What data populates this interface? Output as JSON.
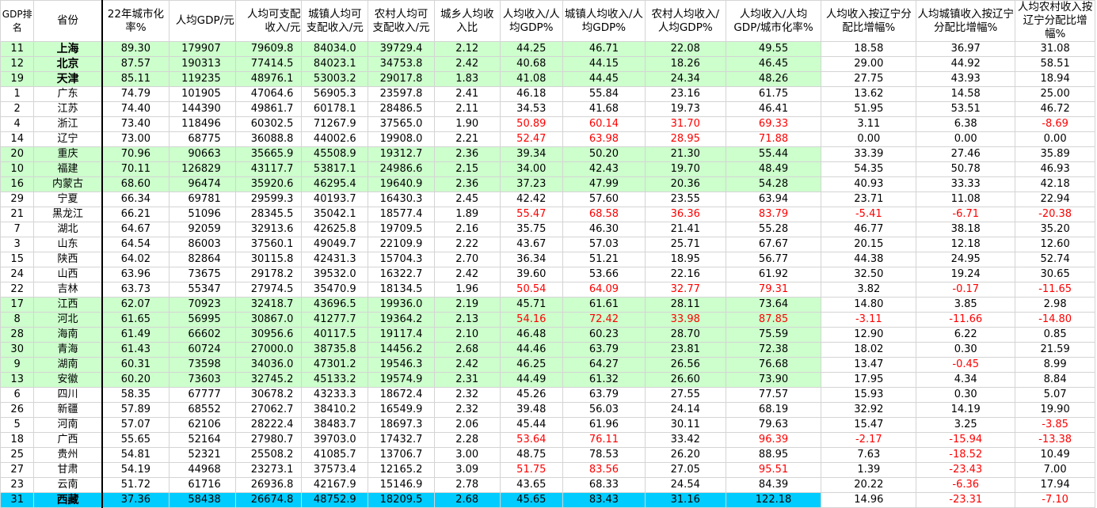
{
  "colors": {
    "highlight_green": "#ccffcc",
    "highlight_blue": "#00ccff",
    "negative_or_high_red": "#ff0000",
    "grid": "#d4d4d4"
  },
  "table": {
    "headers": [
      "GDP排名",
      "省份",
      "22年城市化率%",
      "人均GDP/元",
      "人均可支配收入/元",
      "城镇人均可支配收入/元",
      "农村人均可支配收入/元",
      "城乡人均收入比",
      "人均收入/人均GDP%",
      "城镇人均收入/人均GDP%",
      "农村人均收入/人均GDP%",
      "人均收入/人均GDP/城市化率%",
      "人均收入按辽宁分配比增幅%",
      "人均城镇收入按辽宁分配比增幅%",
      "人均农村收入按辽宁分配比增幅%"
    ],
    "rows": [
      {
        "hl": "green",
        "bold": true,
        "red": [],
        "cells": [
          "11",
          "上海",
          "89.30",
          "179907",
          "79609.8",
          "84034.0",
          "39729.4",
          "2.12",
          "44.25",
          "46.71",
          "22.08",
          "49.55",
          "18.58",
          "36.97",
          "31.08"
        ]
      },
      {
        "hl": "green",
        "bold": true,
        "red": [],
        "cells": [
          "12",
          "北京",
          "87.57",
          "190313",
          "77414.5",
          "84023.1",
          "34753.8",
          "2.42",
          "40.68",
          "44.15",
          "18.26",
          "46.45",
          "29.00",
          "44.92",
          "58.51"
        ]
      },
      {
        "hl": "green",
        "bold": true,
        "red": [],
        "cells": [
          "19",
          "天津",
          "85.11",
          "119235",
          "48976.1",
          "53003.2",
          "29017.8",
          "1.83",
          "41.08",
          "44.45",
          "24.34",
          "48.26",
          "27.75",
          "43.93",
          "18.94"
        ]
      },
      {
        "hl": "",
        "bold": false,
        "red": [],
        "cells": [
          "1",
          "广东",
          "74.79",
          "101905",
          "47064.6",
          "56905.3",
          "23597.8",
          "2.41",
          "46.18",
          "55.84",
          "23.16",
          "61.75",
          "13.62",
          "14.58",
          "25.00"
        ]
      },
      {
        "hl": "",
        "bold": false,
        "red": [],
        "cells": [
          "2",
          "江苏",
          "74.40",
          "144390",
          "49861.7",
          "60178.1",
          "28486.5",
          "2.11",
          "34.53",
          "41.68",
          "19.73",
          "46.41",
          "51.95",
          "53.51",
          "46.72"
        ]
      },
      {
        "hl": "",
        "bold": false,
        "red": [
          8,
          9,
          10,
          11,
          14
        ],
        "cells": [
          "4",
          "浙江",
          "73.40",
          "118496",
          "60302.5",
          "71267.9",
          "37565.0",
          "1.90",
          "50.89",
          "60.14",
          "31.70",
          "69.33",
          "3.11",
          "6.38",
          "-8.69"
        ]
      },
      {
        "hl": "",
        "bold": false,
        "red": [
          8,
          9,
          10,
          11
        ],
        "cells": [
          "14",
          "辽宁",
          "73.00",
          "68775",
          "36088.8",
          "44002.6",
          "19908.0",
          "2.21",
          "52.47",
          "63.98",
          "28.95",
          "71.88",
          "0.00",
          "0.00",
          "0.00"
        ]
      },
      {
        "hl": "green",
        "bold": false,
        "red": [],
        "cells": [
          "20",
          "重庆",
          "70.96",
          "90663",
          "35665.9",
          "45508.9",
          "19312.7",
          "2.36",
          "39.34",
          "50.20",
          "21.30",
          "55.44",
          "33.39",
          "27.46",
          "35.89"
        ]
      },
      {
        "hl": "green",
        "bold": false,
        "red": [],
        "cells": [
          "10",
          "福建",
          "70.11",
          "126829",
          "43117.7",
          "53817.1",
          "24986.6",
          "2.15",
          "34.00",
          "42.43",
          "19.70",
          "48.49",
          "54.35",
          "50.78",
          "46.93"
        ]
      },
      {
        "hl": "green",
        "bold": false,
        "red": [],
        "cells": [
          "16",
          "内蒙古",
          "68.60",
          "96474",
          "35920.6",
          "46295.4",
          "19640.9",
          "2.36",
          "37.23",
          "47.99",
          "20.36",
          "54.28",
          "40.93",
          "33.33",
          "42.18"
        ]
      },
      {
        "hl": "",
        "bold": false,
        "red": [],
        "cells": [
          "29",
          "宁夏",
          "66.34",
          "69781",
          "29599.3",
          "40193.7",
          "16430.3",
          "2.45",
          "42.42",
          "57.60",
          "23.55",
          "63.94",
          "23.71",
          "11.08",
          "22.94"
        ]
      },
      {
        "hl": "",
        "bold": false,
        "red": [
          8,
          9,
          10,
          11,
          12,
          13,
          14
        ],
        "cells": [
          "21",
          "黑龙江",
          "66.21",
          "51096",
          "28345.5",
          "35042.1",
          "18577.4",
          "1.89",
          "55.47",
          "68.58",
          "36.36",
          "83.79",
          "-5.41",
          "-6.71",
          "-20.38"
        ]
      },
      {
        "hl": "",
        "bold": false,
        "red": [],
        "cells": [
          "7",
          "湖北",
          "64.67",
          "92059",
          "32913.6",
          "42625.8",
          "19709.5",
          "2.16",
          "35.75",
          "46.30",
          "21.41",
          "55.28",
          "46.77",
          "38.18",
          "35.20"
        ]
      },
      {
        "hl": "",
        "bold": false,
        "red": [],
        "cells": [
          "3",
          "山东",
          "64.54",
          "86003",
          "37560.1",
          "49049.7",
          "22109.9",
          "2.22",
          "43.67",
          "57.03",
          "25.71",
          "67.67",
          "20.15",
          "12.18",
          "12.60"
        ]
      },
      {
        "hl": "",
        "bold": false,
        "red": [],
        "cells": [
          "15",
          "陕西",
          "64.02",
          "82864",
          "30115.8",
          "42431.3",
          "15704.3",
          "2.70",
          "36.34",
          "51.21",
          "18.95",
          "56.77",
          "44.38",
          "24.95",
          "52.74"
        ]
      },
      {
        "hl": "",
        "bold": false,
        "red": [],
        "cells": [
          "24",
          "山西",
          "63.96",
          "73675",
          "29178.2",
          "39532.0",
          "16322.7",
          "2.42",
          "39.60",
          "53.66",
          "22.16",
          "61.92",
          "32.50",
          "19.24",
          "30.65"
        ]
      },
      {
        "hl": "",
        "bold": false,
        "red": [
          8,
          9,
          10,
          11,
          13,
          14
        ],
        "cells": [
          "22",
          "吉林",
          "63.73",
          "55347",
          "27974.5",
          "35470.9",
          "18134.5",
          "1.96",
          "50.54",
          "64.09",
          "32.77",
          "79.31",
          "3.82",
          "-0.17",
          "-11.65"
        ]
      },
      {
        "hl": "green",
        "bold": false,
        "red": [],
        "cells": [
          "17",
          "江西",
          "62.07",
          "70923",
          "32418.7",
          "43696.5",
          "19936.0",
          "2.19",
          "45.71",
          "61.61",
          "28.11",
          "73.64",
          "14.80",
          "3.85",
          "2.98"
        ]
      },
      {
        "hl": "green",
        "bold": false,
        "red": [
          8,
          9,
          10,
          11,
          12,
          13,
          14
        ],
        "cells": [
          "8",
          "河北",
          "61.65",
          "56995",
          "30867.0",
          "41277.7",
          "19364.2",
          "2.13",
          "54.16",
          "72.42",
          "33.98",
          "87.85",
          "-3.11",
          "-11.66",
          "-14.80"
        ]
      },
      {
        "hl": "green",
        "bold": false,
        "red": [],
        "cells": [
          "28",
          "海南",
          "61.49",
          "66602",
          "30956.6",
          "40117.5",
          "19117.4",
          "2.10",
          "46.48",
          "60.23",
          "28.70",
          "75.59",
          "12.90",
          "6.22",
          "0.85"
        ]
      },
      {
        "hl": "green",
        "bold": false,
        "red": [],
        "cells": [
          "30",
          "青海",
          "61.43",
          "60724",
          "27000.0",
          "38735.8",
          "14456.2",
          "2.68",
          "44.46",
          "63.79",
          "23.81",
          "72.38",
          "18.02",
          "0.30",
          "21.59"
        ]
      },
      {
        "hl": "green",
        "bold": false,
        "red": [
          13
        ],
        "cells": [
          "9",
          "湖南",
          "60.31",
          "73598",
          "34036.0",
          "47301.2",
          "19546.3",
          "2.42",
          "46.25",
          "64.27",
          "26.56",
          "76.68",
          "13.47",
          "-0.45",
          "8.99"
        ]
      },
      {
        "hl": "green",
        "bold": false,
        "red": [],
        "cells": [
          "13",
          "安徽",
          "60.20",
          "73603",
          "32745.2",
          "45133.2",
          "19574.9",
          "2.31",
          "44.49",
          "61.32",
          "26.60",
          "73.90",
          "17.95",
          "4.34",
          "8.84"
        ]
      },
      {
        "hl": "",
        "bold": false,
        "red": [],
        "cells": [
          "6",
          "四川",
          "58.35",
          "67777",
          "30678.2",
          "43233.3",
          "18672.4",
          "2.32",
          "45.26",
          "63.79",
          "27.55",
          "77.57",
          "15.93",
          "0.30",
          "5.07"
        ]
      },
      {
        "hl": "",
        "bold": false,
        "red": [],
        "cells": [
          "26",
          "新疆",
          "57.89",
          "68552",
          "27062.7",
          "38410.2",
          "16549.9",
          "2.32",
          "39.48",
          "56.03",
          "24.14",
          "68.19",
          "32.92",
          "14.19",
          "19.90"
        ]
      },
      {
        "hl": "",
        "bold": false,
        "red": [
          14
        ],
        "cells": [
          "5",
          "河南",
          "57.07",
          "62106",
          "28222.4",
          "38483.7",
          "18697.3",
          "2.06",
          "45.44",
          "61.96",
          "30.11",
          "79.63",
          "15.47",
          "3.25",
          "-3.85"
        ]
      },
      {
        "hl": "",
        "bold": false,
        "red": [
          8,
          9,
          11,
          12,
          13,
          14
        ],
        "cells": [
          "18",
          "广西",
          "55.65",
          "52164",
          "27980.7",
          "39703.0",
          "17432.7",
          "2.28",
          "53.64",
          "76.11",
          "33.42",
          "96.39",
          "-2.17",
          "-15.94",
          "-13.38"
        ]
      },
      {
        "hl": "",
        "bold": false,
        "red": [
          13
        ],
        "cells": [
          "25",
          "贵州",
          "54.81",
          "52321",
          "25508.2",
          "41085.7",
          "13706.7",
          "3.00",
          "48.75",
          "78.53",
          "26.20",
          "88.95",
          "7.63",
          "-18.52",
          "10.49"
        ]
      },
      {
        "hl": "",
        "bold": false,
        "red": [
          8,
          9,
          11,
          13
        ],
        "cells": [
          "27",
          "甘肃",
          "54.19",
          "44968",
          "23273.1",
          "37573.4",
          "12165.2",
          "3.09",
          "51.75",
          "83.56",
          "27.05",
          "95.51",
          "1.39",
          "-23.43",
          "7.00"
        ]
      },
      {
        "hl": "",
        "bold": false,
        "red": [
          13
        ],
        "cells": [
          "23",
          "云南",
          "51.72",
          "61716",
          "26936.8",
          "42167.9",
          "15146.9",
          "2.78",
          "43.65",
          "68.33",
          "24.54",
          "84.39",
          "20.22",
          "-6.36",
          "17.94"
        ]
      },
      {
        "hl": "blue",
        "bold": true,
        "red": [
          13,
          14
        ],
        "cells": [
          "31",
          "西藏",
          "37.36",
          "58438",
          "26674.8",
          "48752.9",
          "18209.5",
          "2.68",
          "45.65",
          "83.43",
          "31.16",
          "122.18",
          "14.96",
          "-23.31",
          "-7.10"
        ]
      }
    ]
  }
}
